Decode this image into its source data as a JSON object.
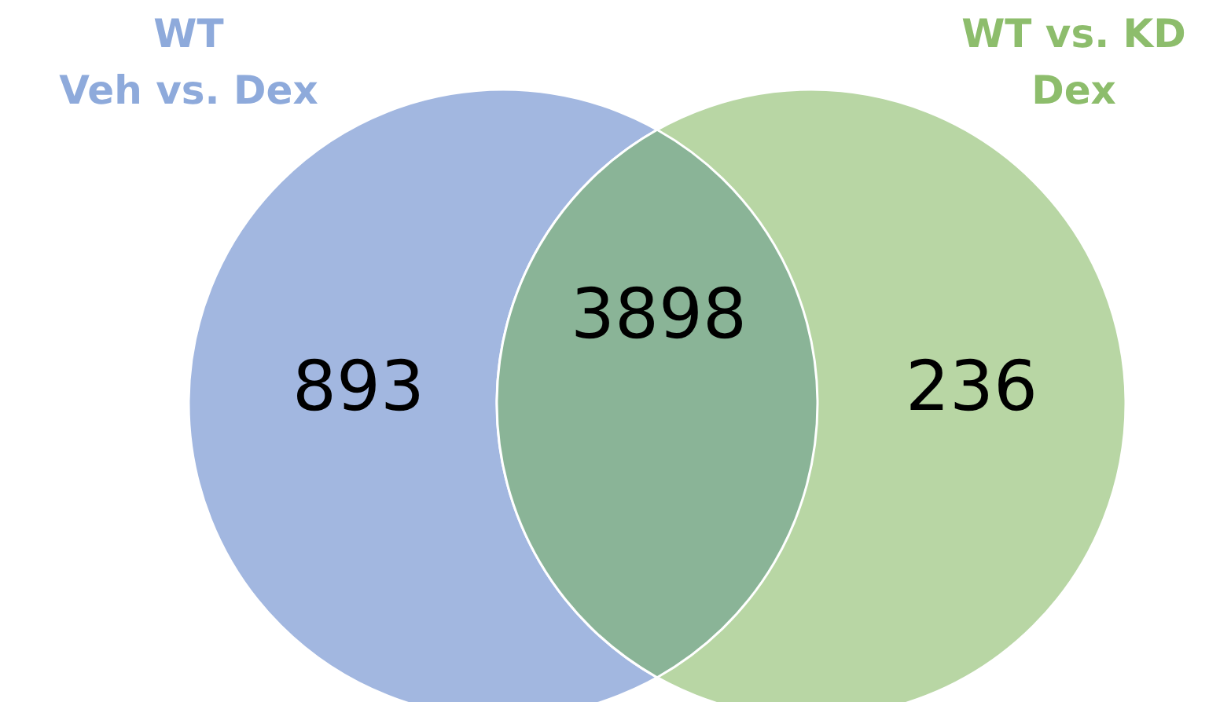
{
  "chart_data": {
    "type": "other",
    "categories": [
      null,
      null,
      null
    ],
    "values": [
      893,
      3898,
      236
    ],
    "data_labels": true,
    "colors": [
      "#a2b7e0",
      "#8ab497",
      "#b8d6a4"
    ],
    "annotations": [
      "WT\nVeh vs. Dex",
      "WT vs. KD\nDex"
    ]
  }
}
